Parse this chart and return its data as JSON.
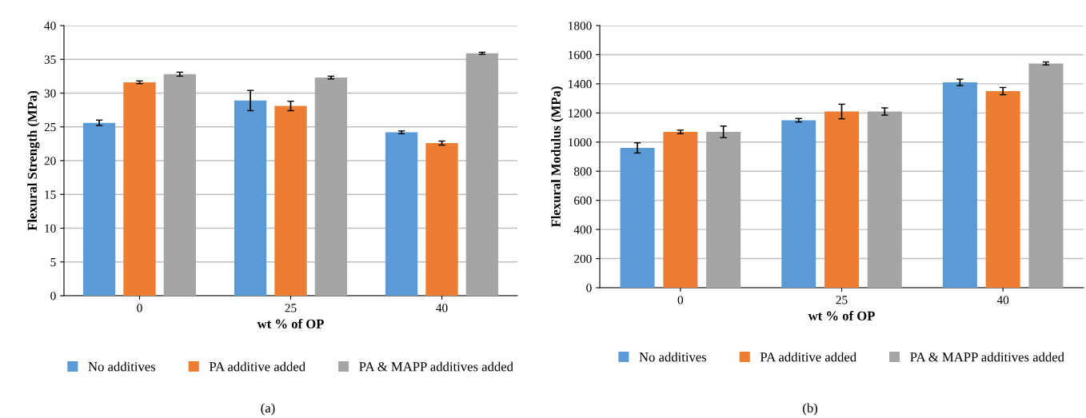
{
  "chart_data": [
    {
      "type": "bar",
      "xlabel": "wt % of OP",
      "ylabel": "Flexural Strength (MPa)",
      "categories": [
        "0",
        "25",
        "40"
      ],
      "ylim": [
        0,
        40
      ],
      "yticks": [
        0,
        5,
        10,
        15,
        20,
        25,
        30,
        35,
        40
      ],
      "grid": "y",
      "legend": "bottom",
      "annotations": [
        "(a)"
      ],
      "series": [
        {
          "name": "No additives",
          "color": "#5b9bd5",
          "values": [
            25.6,
            28.9,
            24.2
          ],
          "errors": [
            0.4,
            1.5,
            0.2
          ]
        },
        {
          "name": "PA additive added",
          "color": "#ed7d31",
          "values": [
            31.6,
            28.1,
            22.6
          ],
          "errors": [
            0.2,
            0.7,
            0.3
          ]
        },
        {
          "name": "PA & MAPP additives added",
          "color": "#a5a5a5",
          "values": [
            32.8,
            32.3,
            35.9
          ],
          "errors": [
            0.3,
            0.2,
            0.15
          ]
        }
      ]
    },
    {
      "type": "bar",
      "xlabel": "wt % of OP",
      "ylabel": "Flexural Modulus (MPa)",
      "categories": [
        "0",
        "25",
        "40"
      ],
      "ylim": [
        0,
        1800
      ],
      "yticks": [
        0,
        200,
        400,
        600,
        800,
        1000,
        1200,
        1400,
        1600,
        1800
      ],
      "grid": "y",
      "legend": "bottom",
      "annotations": [
        "(b)"
      ],
      "series": [
        {
          "name": "No additives",
          "color": "#5b9bd5",
          "values": [
            960,
            1150,
            1410
          ],
          "errors": [
            35,
            12,
            22
          ]
        },
        {
          "name": "PA additive added",
          "color": "#ed7d31",
          "values": [
            1070,
            1210,
            1350
          ],
          "errors": [
            12,
            50,
            25
          ]
        },
        {
          "name": "PA & MAPP additives added",
          "color": "#a5a5a5",
          "values": [
            1070,
            1210,
            1540
          ],
          "errors": [
            40,
            25,
            10
          ]
        }
      ]
    }
  ]
}
